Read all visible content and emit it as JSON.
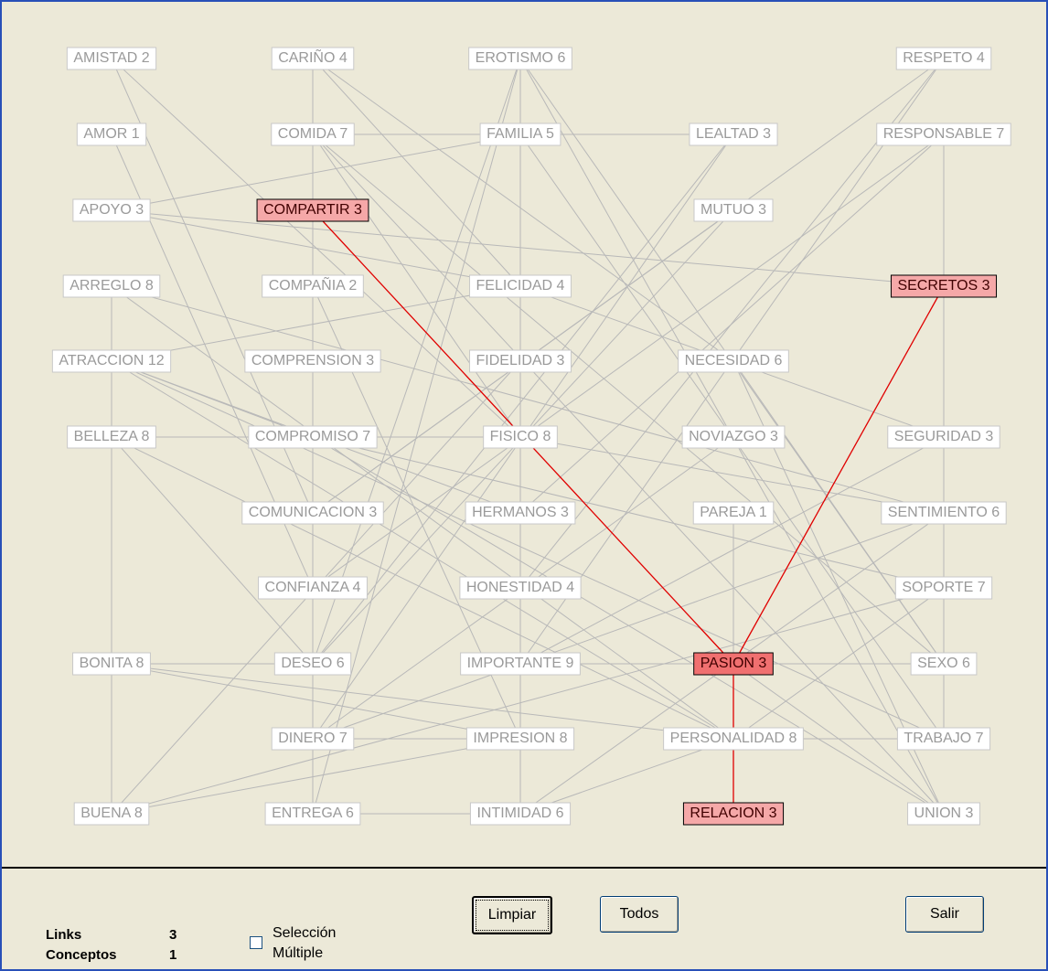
{
  "nodes": [
    {
      "label": "AMISTAD 2"
    },
    {
      "label": "AMOR 1"
    },
    {
      "label": "APOYO 3"
    },
    {
      "label": "ARREGLO 8"
    },
    {
      "label": "ATRACCION 12"
    },
    {
      "label": "BELLEZA 8"
    },
    {
      "label": "BONITA 8"
    },
    {
      "label": "BUENA 8"
    },
    {
      "label": "CARIÑO 4"
    },
    {
      "label": "COMIDA 7"
    },
    {
      "label": "COMPARTIR 3",
      "selected": true
    },
    {
      "label": "COMPAÑIA 2"
    },
    {
      "label": "COMPRENSION 3"
    },
    {
      "label": "COMPROMISO 7"
    },
    {
      "label": "COMUNICACION 3"
    },
    {
      "label": "CONFIANZA 4"
    },
    {
      "label": "DESEO 6"
    },
    {
      "label": "DINERO 7"
    },
    {
      "label": "ENTREGA 6"
    },
    {
      "label": "EROTISMO 6"
    },
    {
      "label": "FAMILIA 5"
    },
    {
      "label": "FELICIDAD 4"
    },
    {
      "label": "FIDELIDAD 3"
    },
    {
      "label": "FISICO 8"
    },
    {
      "label": "HERMANOS 3"
    },
    {
      "label": "HONESTIDAD 4"
    },
    {
      "label": "IMPORTANTE 9"
    },
    {
      "label": "IMPRESION 8"
    },
    {
      "label": "INTIMIDAD 6"
    },
    {
      "label": "LEALTAD 3"
    },
    {
      "label": "MUTUO 3"
    },
    {
      "label": "NECESIDAD 6"
    },
    {
      "label": "NOVIAZGO 3"
    },
    {
      "label": "PAREJA 1"
    },
    {
      "label": "PASION 3",
      "selected": true,
      "active": true
    },
    {
      "label": "PERSONALIDAD 8"
    },
    {
      "label": "RELACION 3",
      "selected": true
    },
    {
      "label": "RESPETO 4"
    },
    {
      "label": "RESPONSABLE 7"
    },
    {
      "label": "SECRETOS 3",
      "selected": true
    },
    {
      "label": "SEGURIDAD 3"
    },
    {
      "label": "SENTIMIENTO 6"
    },
    {
      "label": "SOPORTE 7"
    },
    {
      "label": "SEXO 6"
    },
    {
      "label": "TRABAJO 7"
    },
    {
      "label": "UNION 3"
    }
  ],
  "status": {
    "links_label": "Links",
    "links_value": 3,
    "concepts_label": "Conceptos",
    "concepts_value": 1
  },
  "checkbox": {
    "line1": "Selección",
    "line2": "Múltiple",
    "checked": false
  },
  "buttons": [
    "Limpiar",
    "Todos",
    "Salir"
  ]
}
